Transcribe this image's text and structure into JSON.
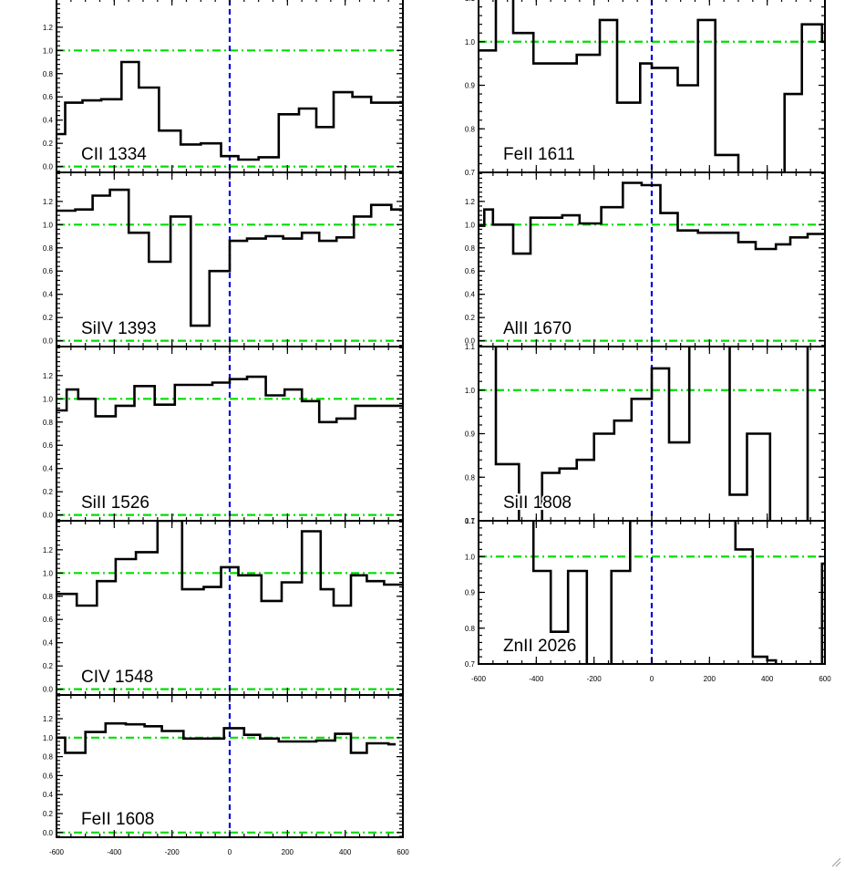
{
  "chart_data": {
    "type": "line",
    "figure_title": "",
    "xlabel": "",
    "ylabel": "",
    "xlim": [
      -600,
      600
    ],
    "xticks": [
      "-600",
      "-400",
      "-200",
      "0",
      "200",
      "400",
      "600"
    ],
    "reference_lines": {
      "vertical_x": 0,
      "green_dash_dot_y": [
        0.0,
        1.0
      ]
    },
    "panels": [
      {
        "label": "CII 1334",
        "column": "left",
        "ylim": [
          -0.05,
          1.45
        ],
        "yticks": [
          "0.0",
          "0.2",
          "0.4",
          "0.6",
          "0.8",
          "1.0",
          "1.2"
        ],
        "show_xticks": false,
        "step_x": [
          -600,
          -570,
          -510,
          -445,
          -375,
          -315,
          -245,
          -170,
          -100,
          -30,
          30,
          100,
          170,
          240,
          300,
          360,
          425,
          490,
          550,
          600
        ],
        "step_y": [
          0.28,
          0.55,
          0.57,
          0.58,
          0.9,
          0.68,
          0.31,
          0.19,
          0.2,
          0.09,
          0.06,
          0.08,
          0.45,
          0.5,
          0.34,
          0.64,
          0.6,
          0.55,
          0.55
        ]
      },
      {
        "label": "SiIV 1393",
        "column": "left",
        "ylim": [
          -0.05,
          1.45
        ],
        "yticks": [
          "0.0",
          "0.2",
          "0.4",
          "0.6",
          "0.8",
          "1.0",
          "1.2"
        ],
        "show_xticks": false,
        "step_x": [
          -600,
          -535,
          -475,
          -415,
          -350,
          -280,
          -205,
          -135,
          -70,
          0,
          60,
          125,
          185,
          250,
          310,
          370,
          430,
          490,
          560,
          600
        ],
        "step_y": [
          1.12,
          1.13,
          1.25,
          1.3,
          0.93,
          0.68,
          1.07,
          0.13,
          0.6,
          0.86,
          0.88,
          0.9,
          0.88,
          0.93,
          0.86,
          0.89,
          1.07,
          1.17,
          1.13
        ]
      },
      {
        "label": "SiII 1526",
        "column": "left",
        "ylim": [
          -0.05,
          1.45
        ],
        "yticks": [
          "0.0",
          "0.2",
          "0.4",
          "0.6",
          "0.8",
          "1.0",
          "1.2"
        ],
        "show_xticks": false,
        "step_x": [
          -600,
          -565,
          -525,
          -465,
          -395,
          -330,
          -260,
          -190,
          -125,
          -60,
          0,
          60,
          125,
          190,
          250,
          310,
          370,
          435,
          495,
          600
        ],
        "step_y": [
          0.9,
          1.08,
          1.0,
          0.85,
          0.94,
          1.11,
          0.95,
          1.12,
          1.12,
          1.14,
          1.17,
          1.19,
          1.03,
          1.08,
          0.98,
          0.8,
          0.83,
          0.94,
          0.94
        ]
      },
      {
        "label": "CIV 1548",
        "column": "left",
        "ylim": [
          -0.05,
          1.45
        ],
        "yticks": [
          "0.0",
          "0.2",
          "0.4",
          "0.6",
          "0.8",
          "1.0",
          "1.2"
        ],
        "show_xticks": false,
        "step_x": [
          -600,
          -530,
          -460,
          -395,
          -325,
          -250,
          -165,
          -90,
          -30,
          30,
          110,
          180,
          250,
          315,
          360,
          420,
          475,
          535,
          600
        ],
        "step_y": [
          0.82,
          0.72,
          0.93,
          1.12,
          1.18,
          1.45,
          0.86,
          0.88,
          1.05,
          0.98,
          0.76,
          0.92,
          1.36,
          0.86,
          0.72,
          0.98,
          0.93,
          0.9
        ]
      },
      {
        "label": "FeII 1608",
        "column": "left",
        "ylim": [
          -0.05,
          1.45
        ],
        "yticks": [
          "0.0",
          "0.2",
          "0.4",
          "0.6",
          "0.8",
          "1.0",
          "1.2"
        ],
        "show_xticks": true,
        "step_x": [
          -600,
          -570,
          -500,
          -430,
          -360,
          -295,
          -235,
          -160,
          -95,
          -20,
          50,
          105,
          170,
          240,
          300,
          365,
          420,
          475,
          550,
          575
        ],
        "step_y": [
          1.0,
          0.84,
          1.06,
          1.15,
          1.14,
          1.12,
          1.07,
          0.99,
          0.99,
          1.1,
          1.03,
          0.99,
          0.96,
          0.96,
          0.97,
          1.04,
          0.84,
          0.94,
          0.93
        ]
      },
      {
        "label": "FeII 1611",
        "column": "right",
        "ylim": [
          0.7,
          1.1
        ],
        "yticks": [
          "0.7",
          "0.8",
          "0.9",
          "1.0",
          "1.1"
        ],
        "show_xticks": false,
        "step_x": [
          -600,
          -540,
          -480,
          -410,
          -330,
          -260,
          -180,
          -120,
          -40,
          0,
          90,
          160,
          220,
          300,
          410,
          460,
          520,
          590,
          600
        ],
        "step_y": [
          0.98,
          1.12,
          1.02,
          0.95,
          0.95,
          0.97,
          1.05,
          0.86,
          0.95,
          0.94,
          0.9,
          1.05,
          0.74,
          0.66,
          0.6,
          0.88,
          1.04,
          1.0
        ]
      },
      {
        "label": "AlII 1670",
        "column": "right",
        "ylim": [
          -0.05,
          1.45
        ],
        "yticks": [
          "0.0",
          "0.2",
          "0.4",
          "0.6",
          "0.8",
          "1.0",
          "1.2"
        ],
        "show_xticks": false,
        "step_x": [
          -600,
          -580,
          -550,
          -480,
          -420,
          -370,
          -310,
          -250,
          -175,
          -100,
          -35,
          30,
          90,
          160,
          240,
          300,
          360,
          430,
          480,
          540,
          600
        ],
        "step_y": [
          0.99,
          1.13,
          1.0,
          0.75,
          1.06,
          1.06,
          1.08,
          1.01,
          1.15,
          1.36,
          1.34,
          1.1,
          0.95,
          0.93,
          0.93,
          0.85,
          0.79,
          0.83,
          0.89,
          0.92
        ]
      },
      {
        "label": "SiII 1808",
        "column": "right",
        "ylim": [
          0.7,
          1.1
        ],
        "yticks": [
          "0.7",
          "0.8",
          "0.9",
          "1.0",
          "1.1"
        ],
        "show_xticks": false,
        "step_x": [
          -600,
          -540,
          -460,
          -380,
          -320,
          -260,
          -200,
          -130,
          -70,
          0,
          60,
          130,
          270,
          330,
          410,
          540,
          600
        ],
        "step_y": [
          1.3,
          0.83,
          0.68,
          0.81,
          0.82,
          0.84,
          0.9,
          0.93,
          0.98,
          1.05,
          0.88,
          1.15,
          0.76,
          0.9,
          0.6,
          1.2
        ]
      },
      {
        "label": "ZnII 2026",
        "column": "right",
        "ylim": [
          0.7,
          1.1
        ],
        "yticks": [
          "0.7",
          "0.8",
          "0.9",
          "1.0",
          "1.1"
        ],
        "show_xticks": true,
        "step_x": [
          -600,
          -540,
          -410,
          -350,
          -290,
          -225,
          -140,
          -75,
          -60,
          290,
          350,
          400,
          430,
          590,
          600
        ],
        "step_y": [
          1.3,
          1.15,
          0.96,
          0.79,
          0.96,
          0.68,
          0.96,
          1.1,
          1.2,
          1.02,
          0.72,
          0.71,
          0.62,
          0.98
        ]
      }
    ]
  }
}
